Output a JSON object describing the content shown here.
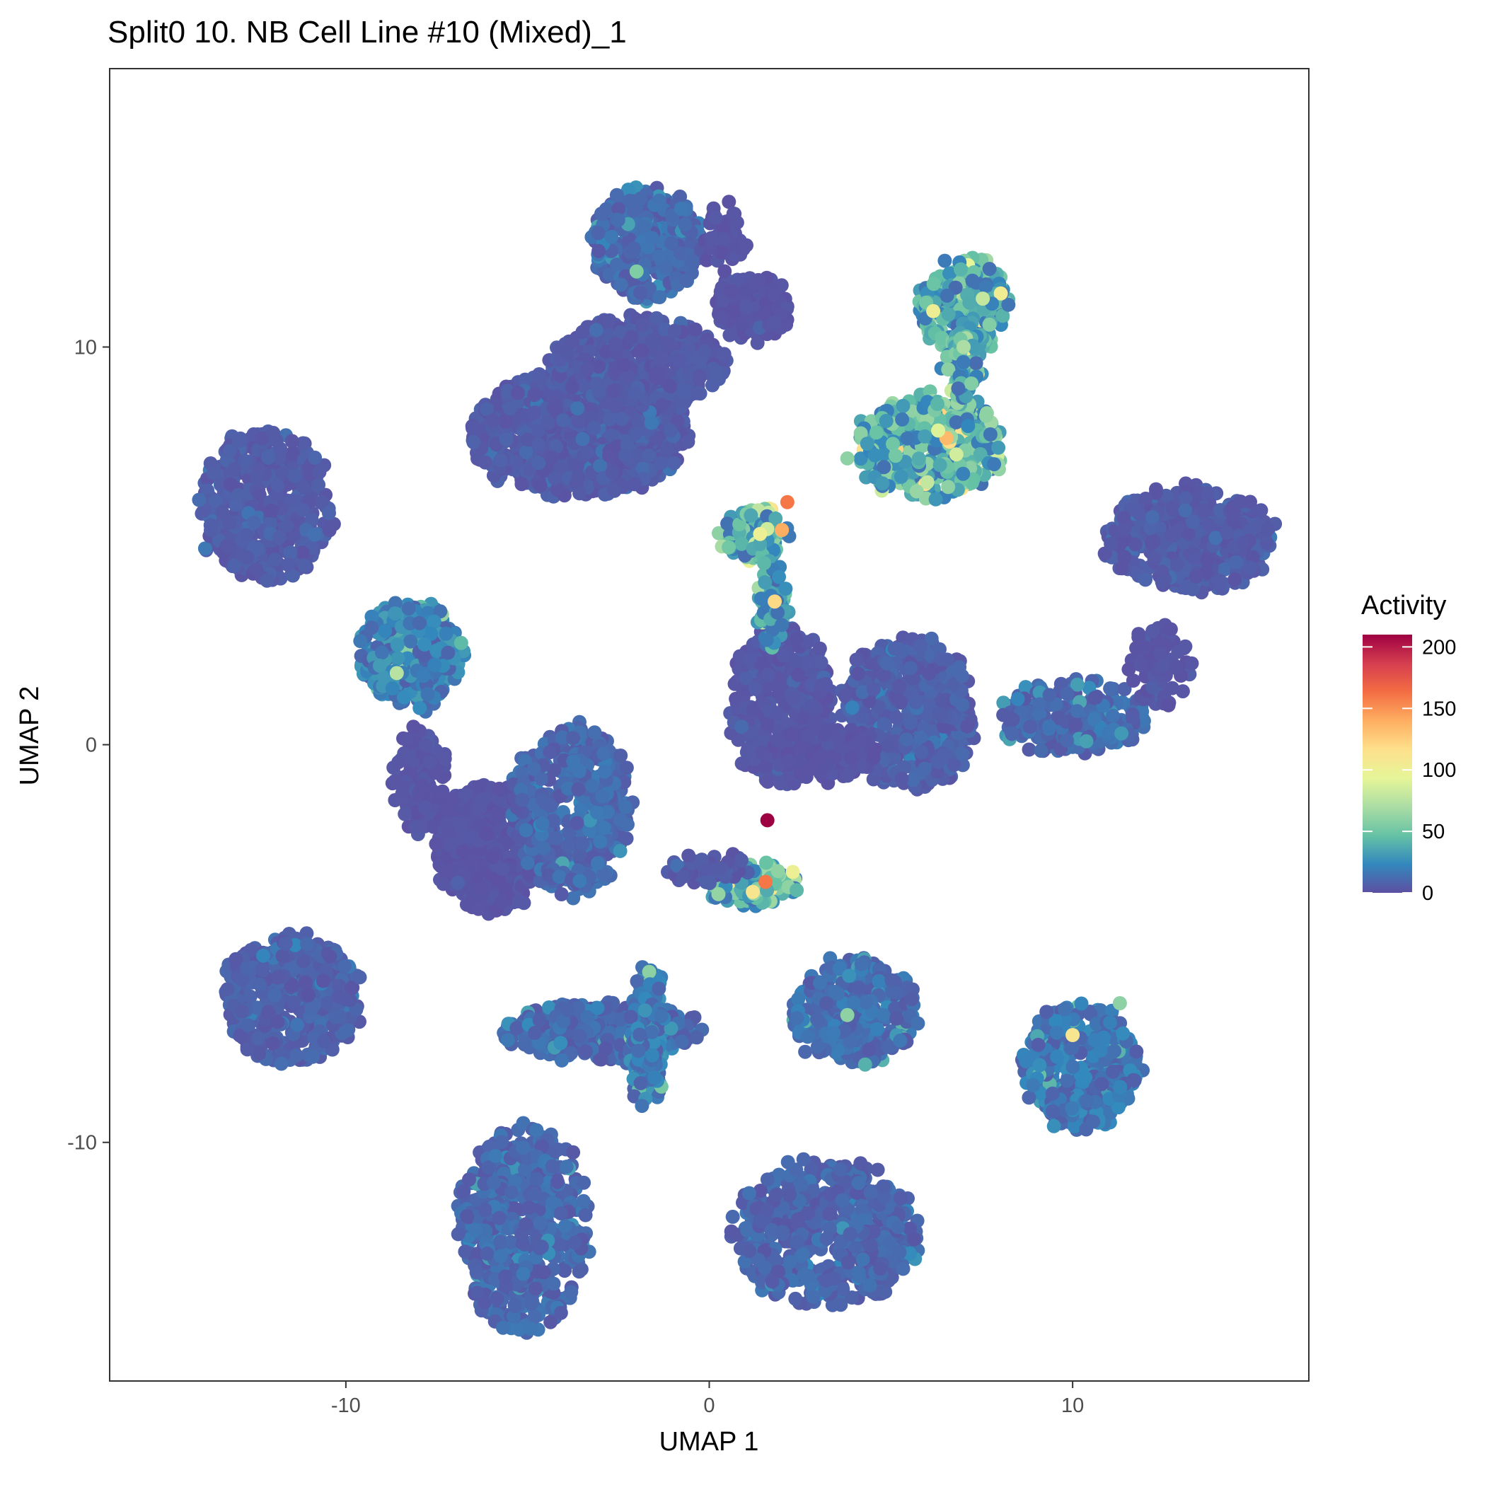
{
  "chart_data": {
    "type": "scatter",
    "title": "Split0 10. NB Cell Line #10 (Mixed)_1",
    "xlabel": "UMAP 1",
    "ylabel": "UMAP 2",
    "xlim": [
      -16.5,
      16.5
    ],
    "ylim": [
      -16.0,
      17.0
    ],
    "x_ticks": [
      -10,
      0,
      10
    ],
    "x_tick_labels": [
      "-10",
      "0",
      "10"
    ],
    "y_ticks": [
      -10,
      0,
      10
    ],
    "y_tick_labels": [
      "-10",
      "0",
      "10"
    ],
    "grid": false,
    "legend": {
      "title": "Activity",
      "placement": "right",
      "type": "colorbar",
      "range": [
        0,
        210
      ],
      "ticks": [
        0,
        50,
        100,
        150,
        200
      ],
      "tick_labels": [
        "0",
        "50",
        "100",
        "150",
        "200"
      ],
      "palette": [
        "#5E4FA2",
        "#3288BD",
        "#66C2A5",
        "#ABDDA4",
        "#E6F598",
        "#FEE08B",
        "#FDAE61",
        "#F46D43",
        "#D53E4F",
        "#9E0142"
      ]
    },
    "clusters": [
      {
        "cx": -3.6,
        "cy": 7.8,
        "rx": 3.0,
        "ry": 1.5,
        "n": 900,
        "activity": 6
      },
      {
        "cx": -2.0,
        "cy": 9.6,
        "rx": 2.4,
        "ry": 1.1,
        "n": 450,
        "activity": 5
      },
      {
        "cx": -1.7,
        "cy": 12.6,
        "rx": 1.5,
        "ry": 1.4,
        "n": 380,
        "activity": 12
      },
      {
        "cx": 1.2,
        "cy": 11.0,
        "rx": 1.0,
        "ry": 0.8,
        "n": 160,
        "activity": 3
      },
      {
        "cx": 0.4,
        "cy": 12.8,
        "rx": 0.5,
        "ry": 0.8,
        "n": 60,
        "activity": 3
      },
      {
        "cx": -12.2,
        "cy": 6.0,
        "rx": 1.8,
        "ry": 1.9,
        "n": 420,
        "activity": 6
      },
      {
        "cx": -8.2,
        "cy": 2.3,
        "rx": 1.4,
        "ry": 1.3,
        "n": 320,
        "activity": 22
      },
      {
        "cx": -8.0,
        "cy": -0.9,
        "rx": 0.7,
        "ry": 1.3,
        "n": 120,
        "activity": 3
      },
      {
        "cx": -6.0,
        "cy": -2.6,
        "rx": 1.5,
        "ry": 1.6,
        "n": 450,
        "activity": 3
      },
      {
        "cx": -3.8,
        "cy": -1.6,
        "rx": 1.6,
        "ry": 2.2,
        "n": 420,
        "activity": 12
      },
      {
        "cx": -11.5,
        "cy": -6.4,
        "rx": 1.9,
        "ry": 1.6,
        "n": 450,
        "activity": 8
      },
      {
        "cx": -3.0,
        "cy": -7.2,
        "rx": 2.7,
        "ry": 0.7,
        "n": 380,
        "activity": 12
      },
      {
        "cx": -1.7,
        "cy": -7.3,
        "rx": 0.5,
        "ry": 1.7,
        "n": 150,
        "activity": 20
      },
      {
        "cx": -5.1,
        "cy": -12.2,
        "rx": 1.8,
        "ry": 2.6,
        "n": 520,
        "activity": 12
      },
      {
        "cx": 3.2,
        "cy": -12.3,
        "rx": 2.6,
        "ry": 1.8,
        "n": 520,
        "activity": 10
      },
      {
        "cx": 4.0,
        "cy": -6.7,
        "rx": 1.7,
        "ry": 1.3,
        "n": 360,
        "activity": 14
      },
      {
        "cx": 10.2,
        "cy": -8.1,
        "rx": 1.6,
        "ry": 1.5,
        "n": 380,
        "activity": 18
      },
      {
        "cx": 10.0,
        "cy": 0.7,
        "rx": 2.0,
        "ry": 0.9,
        "n": 260,
        "activity": 12
      },
      {
        "cx": 13.2,
        "cy": 5.2,
        "rx": 2.3,
        "ry": 1.3,
        "n": 460,
        "activity": 6
      },
      {
        "cx": 12.4,
        "cy": 2.0,
        "rx": 0.8,
        "ry": 1.0,
        "n": 80,
        "activity": 3
      },
      {
        "cx": 2.0,
        "cy": 1.0,
        "rx": 1.4,
        "ry": 2.0,
        "n": 420,
        "activity": 4
      },
      {
        "cx": 5.5,
        "cy": 0.8,
        "rx": 1.8,
        "ry": 1.9,
        "n": 520,
        "activity": 8
      },
      {
        "cx": 3.2,
        "cy": -0.2,
        "rx": 1.4,
        "ry": 0.6,
        "n": 200,
        "activity": 3
      },
      {
        "cx": 6.1,
        "cy": 7.5,
        "rx": 2.0,
        "ry": 1.3,
        "n": 460,
        "activity": 45
      },
      {
        "cx": 7.0,
        "cy": 11.0,
        "rx": 1.2,
        "ry": 1.2,
        "n": 220,
        "activity": 38
      },
      {
        "cx": 7.0,
        "cy": 9.5,
        "rx": 0.5,
        "ry": 0.8,
        "n": 80,
        "activity": 40
      },
      {
        "cx": 1.2,
        "cy": 5.3,
        "rx": 0.9,
        "ry": 0.6,
        "n": 140,
        "activity": 40
      },
      {
        "cx": 1.7,
        "cy": 3.5,
        "rx": 0.4,
        "ry": 1.1,
        "n": 80,
        "activity": 30
      },
      {
        "cx": 1.2,
        "cy": -3.5,
        "rx": 1.2,
        "ry": 0.5,
        "n": 150,
        "activity": 45
      },
      {
        "cx": 0.0,
        "cy": -3.1,
        "rx": 1.1,
        "ry": 0.3,
        "n": 60,
        "activity": 5
      }
    ],
    "highlight_points": [
      {
        "x": 1.6,
        "y": -1.9,
        "activity": 210
      },
      {
        "x": 1.55,
        "y": -3.45,
        "activity": 160
      },
      {
        "x": 2.15,
        "y": 6.1,
        "activity": 160
      },
      {
        "x": 2.0,
        "y": 5.4,
        "activity": 140
      },
      {
        "x": 1.8,
        "y": 3.6,
        "activity": 120
      },
      {
        "x": 10.0,
        "y": -7.3,
        "activity": 110
      },
      {
        "x": 1.2,
        "y": -3.7,
        "activity": 110
      },
      {
        "x": 2.3,
        "y": -3.2,
        "activity": 100
      },
      {
        "x": 1.4,
        "y": 5.3,
        "activity": 100
      },
      {
        "x": 6.3,
        "y": 7.9,
        "activity": 90
      },
      {
        "x": 6.8,
        "y": 7.3,
        "activity": 85
      },
      {
        "x": -8.6,
        "y": 1.8,
        "activity": 75
      },
      {
        "x": 3.8,
        "y": 7.2,
        "activity": 60
      },
      {
        "x": 11.3,
        "y": -6.5,
        "activity": 60
      },
      {
        "x": 3.8,
        "y": -6.8,
        "activity": 60
      },
      {
        "x": 7.0,
        "y": 10.0,
        "activity": 70
      },
      {
        "x": -2.0,
        "y": 11.9,
        "activity": 55
      },
      {
        "x": 6.0,
        "y": 6.6,
        "activity": 80
      }
    ]
  }
}
